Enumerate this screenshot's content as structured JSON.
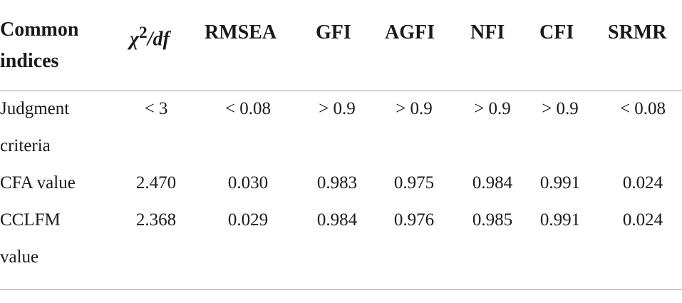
{
  "table": {
    "headers": [
      "Common\nindices",
      "χ2/df",
      "RMSEA",
      "GFI",
      "AGFI",
      "NFI",
      "CFI",
      "SRMR"
    ],
    "header_first_line1": "Common",
    "header_first_line2": "indices",
    "header_chi_base": "χ",
    "header_chi_sup": "2",
    "header_chi_rest": "/df",
    "rows": [
      {
        "label_line1": "Judgment",
        "label_line2": "criteria",
        "values": [
          "< 3",
          "< 0.08",
          "> 0.9",
          "> 0.9",
          "> 0.9",
          "> 0.9",
          "< 0.08"
        ]
      },
      {
        "label_line1": "CFA value",
        "label_line2": "",
        "values": [
          "2.470",
          "0.030",
          "0.983",
          "0.975",
          "0.984",
          "0.991",
          "0.024"
        ]
      },
      {
        "label_line1": "CCLFM",
        "label_line2": "value",
        "values": [
          "2.368",
          "0.029",
          "0.984",
          "0.976",
          "0.985",
          "0.991",
          "0.024"
        ]
      }
    ]
  }
}
